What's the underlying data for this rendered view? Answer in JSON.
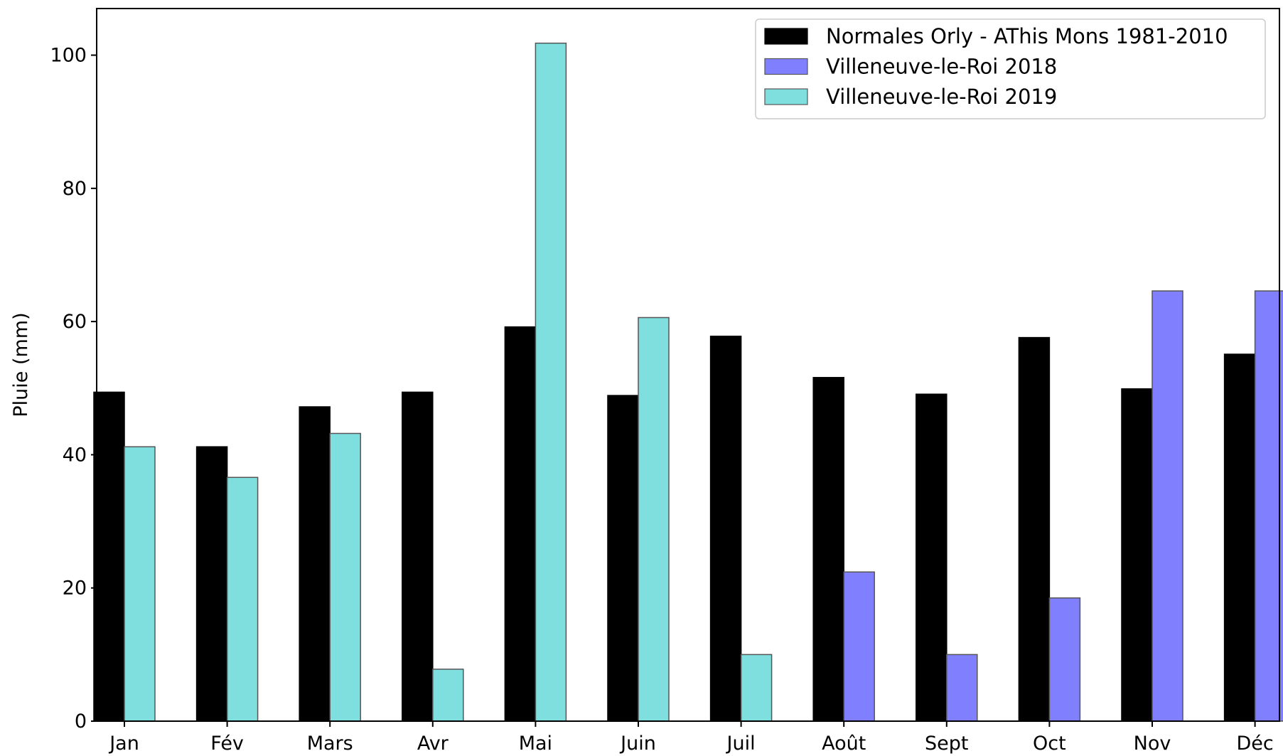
{
  "chart_data": {
    "type": "bar",
    "title": "",
    "xlabel": "",
    "ylabel": "Pluie (mm)",
    "ylim": [
      0,
      107
    ],
    "yticks": [
      0,
      20,
      40,
      60,
      80,
      100
    ],
    "categories": [
      "Jan",
      "Fév",
      "Mars",
      "Avr",
      "Mai",
      "Juin",
      "Juil",
      "Août",
      "Sept",
      "Oct",
      "Nov",
      "Déc"
    ],
    "grid": false,
    "legend_position": "top-right",
    "series": [
      {
        "name": "Normales Orly - AThis Mons 1981-2010",
        "color": "#000000",
        "values": [
          49.4,
          41.2,
          47.2,
          49.4,
          59.2,
          48.9,
          57.8,
          51.6,
          49.1,
          57.6,
          49.9,
          55.1
        ]
      },
      {
        "name": "Villeneuve-le-Roi 2018",
        "color": "#8080ff",
        "values": [
          null,
          null,
          null,
          null,
          null,
          null,
          null,
          22.4,
          10.0,
          18.5,
          64.6,
          64.6
        ]
      },
      {
        "name": "Villeneuve-le-Roi 2019",
        "color": "#7fdfdf",
        "values": [
          41.2,
          36.6,
          43.2,
          7.8,
          101.8,
          60.6,
          10.0,
          null,
          null,
          null,
          null,
          null
        ]
      }
    ]
  }
}
